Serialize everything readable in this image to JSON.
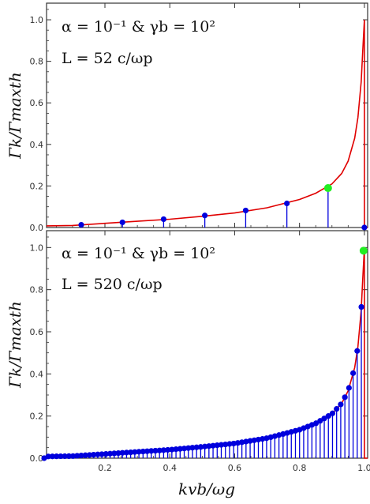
{
  "chart_data": [
    {
      "type": "line",
      "panel": "top",
      "annotation_line1": "α = 10⁻¹  &  γb = 10²",
      "annotation_line2": "L = 52 c/ωp",
      "ylabel": "Γk/Γmaxth",
      "xlabel": "",
      "xlim": [
        0.02,
        1.01
      ],
      "ylim": [
        0,
        1.08
      ],
      "yticks": [
        "0.0",
        "0.2",
        "0.4",
        "0.6",
        "0.8",
        "1.0"
      ],
      "xtick_values": [
        0.2,
        0.4,
        0.6,
        0.8,
        1.0
      ],
      "xtick_labels_shown": false,
      "curve": {
        "name": "",
        "color": "#e00000",
        "x": [
          0.02,
          0.1,
          0.2,
          0.3,
          0.4,
          0.5,
          0.6,
          0.7,
          0.8,
          0.85,
          0.9,
          0.93,
          0.95,
          0.97,
          0.98,
          0.99,
          0.995,
          1.0,
          1.0,
          1.01
        ],
        "y": [
          0.008,
          0.01,
          0.02,
          0.03,
          0.04,
          0.054,
          0.07,
          0.095,
          0.135,
          0.165,
          0.21,
          0.26,
          0.32,
          0.43,
          0.53,
          0.7,
          0.85,
          1.0,
          0.0,
          0.0
        ]
      },
      "stems": {
        "color": "#0000dd",
        "x": [
          0.127,
          0.254,
          0.381,
          0.508,
          0.634,
          0.761,
          0.888,
          1.0
        ],
        "y": [
          0.013,
          0.025,
          0.04,
          0.058,
          0.082,
          0.116,
          0.19,
          0.0
        ]
      },
      "highlight": {
        "color": "#22ee22",
        "x": 0.888,
        "y": 0.19
      }
    },
    {
      "type": "line",
      "panel": "bottom",
      "annotation_line1": "α = 10⁻¹  &  γb = 10²",
      "annotation_line2": "L = 520 c/ωp",
      "ylabel": "Γk/Γmaxth",
      "xlabel": "kvb/ωg",
      "xlim": [
        0.02,
        1.01
      ],
      "ylim": [
        0,
        1.08
      ],
      "yticks": [
        "0.0",
        "0.2",
        "0.4",
        "0.6",
        "0.8",
        "1.0"
      ],
      "xtick_values": [
        0.2,
        0.4,
        0.6,
        0.8,
        1.0
      ],
      "xticks": [
        "0.2",
        "0.4",
        "0.6",
        "0.8",
        "1.0"
      ],
      "curve": {
        "name": "",
        "color": "#e00000",
        "x": [
          0.02,
          0.1,
          0.2,
          0.3,
          0.4,
          0.5,
          0.6,
          0.7,
          0.8,
          0.85,
          0.9,
          0.93,
          0.95,
          0.97,
          0.98,
          0.99,
          0.995,
          1.0,
          1.0,
          1.01
        ],
        "y": [
          0.008,
          0.01,
          0.02,
          0.03,
          0.04,
          0.054,
          0.07,
          0.095,
          0.135,
          0.165,
          0.21,
          0.26,
          0.32,
          0.43,
          0.53,
          0.7,
          0.85,
          1.0,
          0.0,
          0.0
        ]
      },
      "stems": {
        "color": "#0000dd",
        "spacing": 0.0127,
        "count": 78
      },
      "highlight": {
        "color": "#22ee22",
        "x": 0.9975,
        "y": 0.985
      }
    }
  ]
}
